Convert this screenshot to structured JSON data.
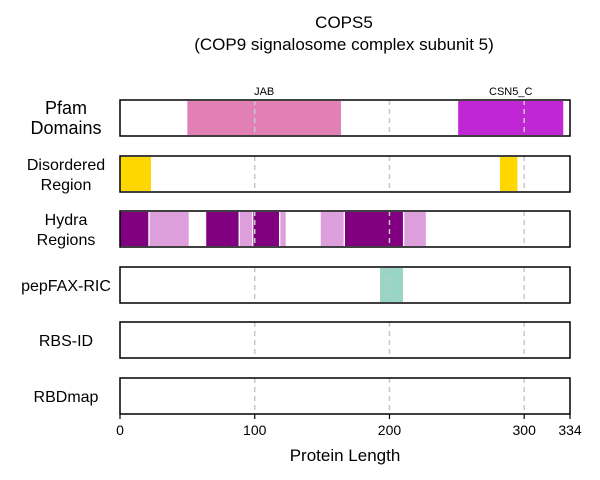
{
  "chart_data": {
    "type": "bar",
    "title": "COPS5",
    "subtitle": "(COP9 signalosome complex subunit 5)",
    "xlabel": "Protein Length",
    "xlim": [
      0,
      334
    ],
    "xticks": [
      0,
      100,
      200,
      300,
      334
    ],
    "gridlines_at": [
      100,
      200,
      300
    ],
    "rows": [
      {
        "key": "pfam",
        "label_lines": [
          "Pfam",
          "Domains"
        ],
        "segments": [
          {
            "start": 50,
            "end": 164,
            "color": "#e27fb4",
            "label": "JAB"
          },
          {
            "start": 251,
            "end": 329,
            "color": "#c026d3",
            "label": "CSN5_C"
          }
        ]
      },
      {
        "key": "disordered",
        "label_lines": [
          "Disordered",
          "Region"
        ],
        "segments": [
          {
            "start": 0,
            "end": 23,
            "color": "#ffd700"
          },
          {
            "start": 282,
            "end": 295,
            "color": "#ffd700"
          }
        ]
      },
      {
        "key": "hydra",
        "label_lines": [
          "Hydra",
          "Regions"
        ],
        "segments": [
          {
            "start": 0,
            "end": 21,
            "color": "#800080"
          },
          {
            "start": 22,
            "end": 51,
            "color": "#dda0dd"
          },
          {
            "start": 64,
            "end": 88,
            "color": "#800080"
          },
          {
            "start": 89,
            "end": 98,
            "color": "#dda0dd"
          },
          {
            "start": 99,
            "end": 118,
            "color": "#800080"
          },
          {
            "start": 119,
            "end": 123,
            "color": "#dda0dd"
          },
          {
            "start": 149,
            "end": 166,
            "color": "#dda0dd"
          },
          {
            "start": 167,
            "end": 210,
            "color": "#800080"
          },
          {
            "start": 211,
            "end": 227,
            "color": "#dda0dd"
          }
        ]
      },
      {
        "key": "pepfax",
        "label_lines": [
          "pepFAX-RIC"
        ],
        "segments": [
          {
            "start": 193,
            "end": 210,
            "color": "#99d5c5"
          }
        ]
      },
      {
        "key": "rbsid",
        "label_lines": [
          "RBS-ID"
        ],
        "segments": []
      },
      {
        "key": "rbdmap",
        "label_lines": [
          "RBDmap"
        ],
        "segments": []
      }
    ]
  }
}
